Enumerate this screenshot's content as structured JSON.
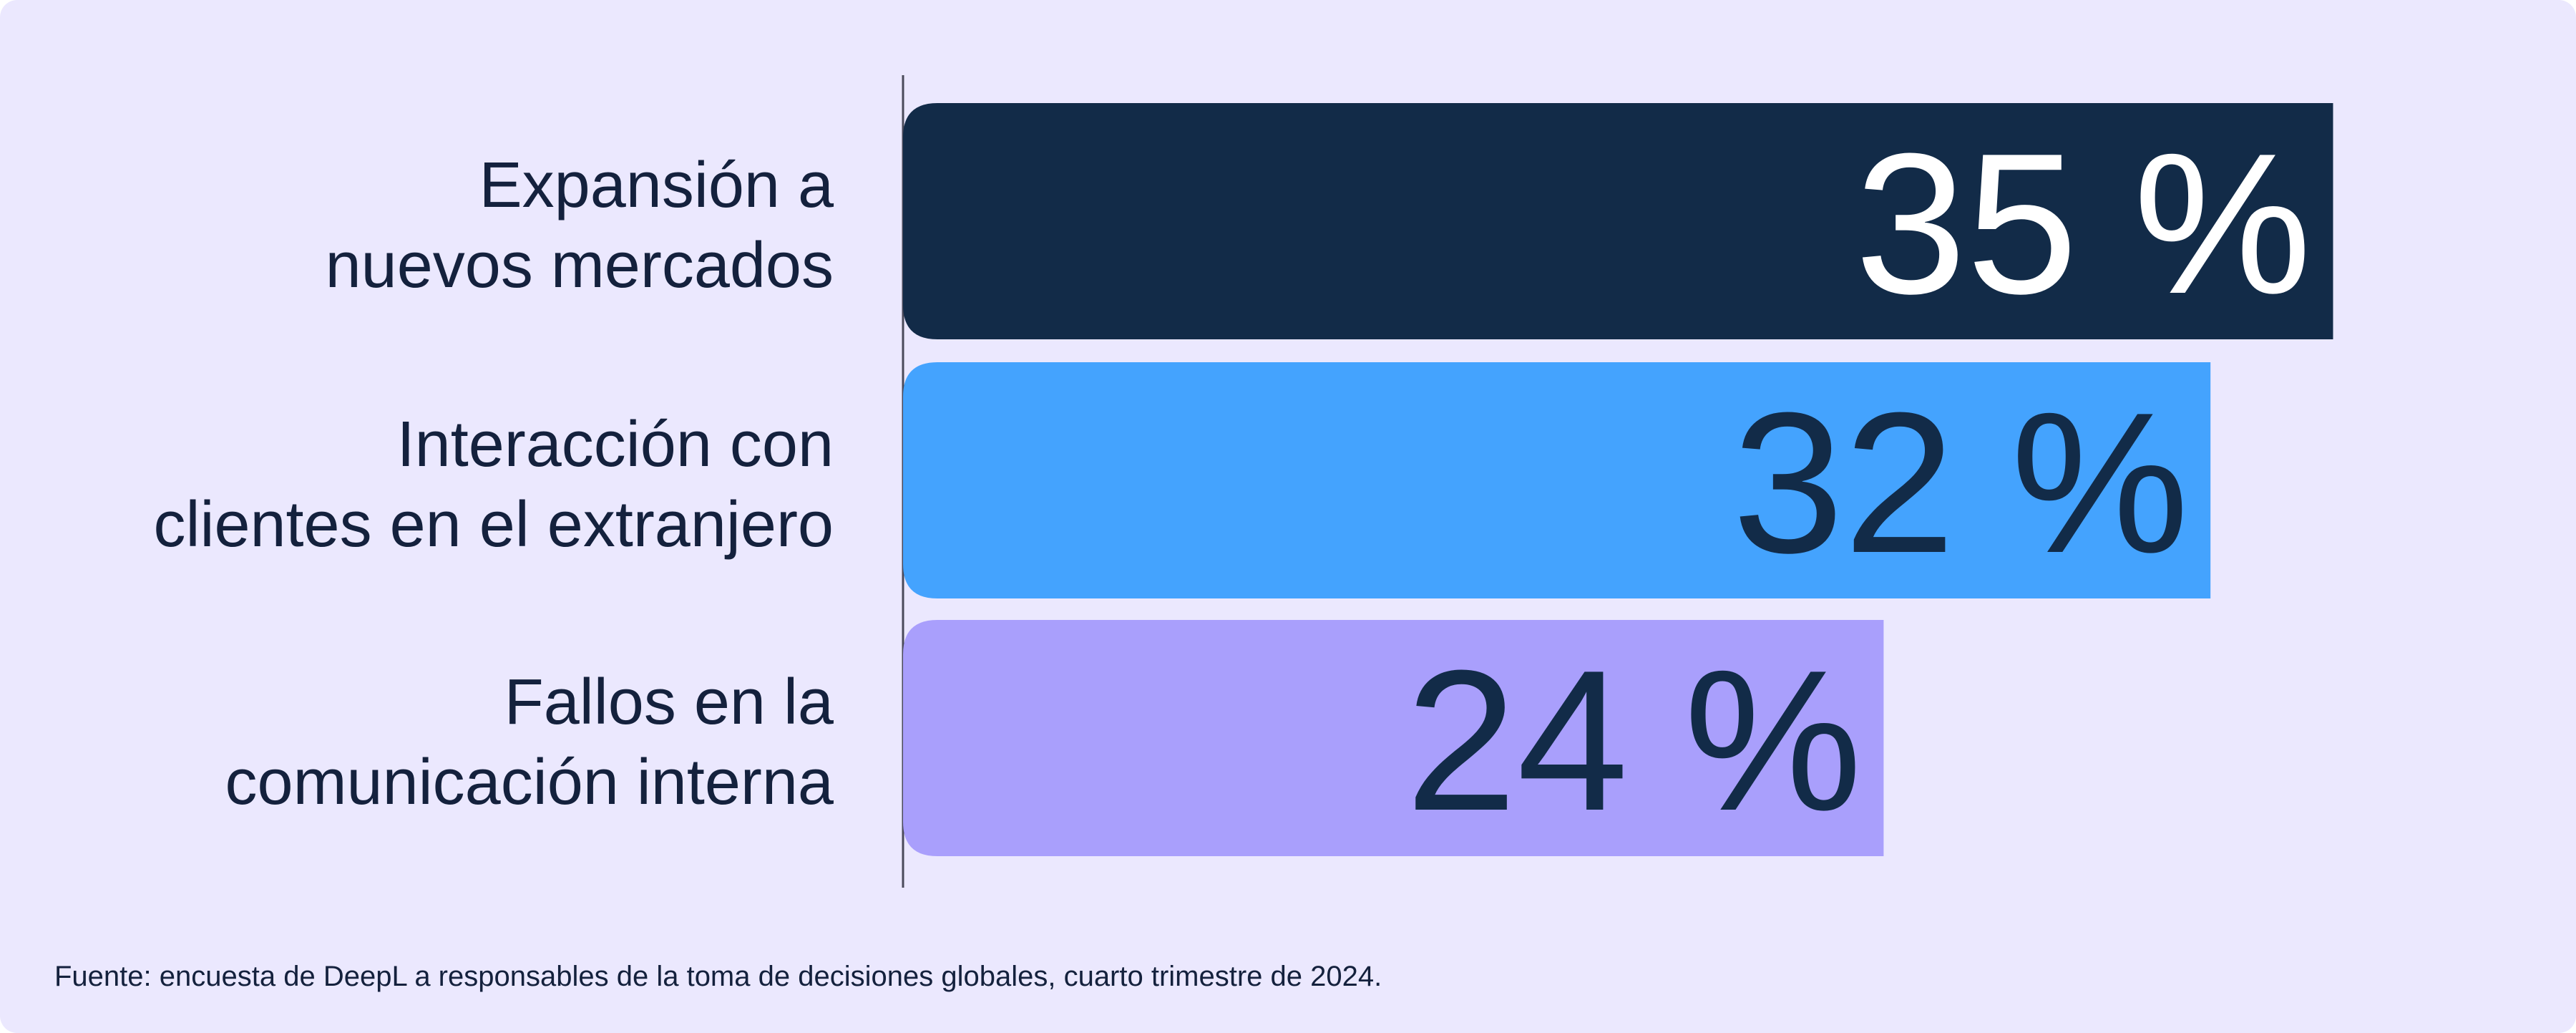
{
  "chart_data": {
    "type": "bar",
    "orientation": "horizontal",
    "categories": [
      [
        "Expansión a",
        "nuevos mercados"
      ],
      [
        "Interacción con",
        "clientes en el extranjero"
      ],
      [
        "Fallos en la",
        "comunicación interna"
      ]
    ],
    "values": [
      35,
      32,
      24
    ],
    "value_labels": [
      "35 %",
      "32 %",
      "24 %"
    ],
    "unit": "%",
    "colors": [
      "#122b48",
      "#44a3fe",
      "#a99ffc"
    ],
    "label_colors": [
      "#ffffff",
      "#122b48",
      "#122b48"
    ],
    "grid": false,
    "legend": "none"
  },
  "footnote": "Fuente: encuesta de DeepL a responsables de la toma de decisiones globales, cuarto trimestre de 2024."
}
